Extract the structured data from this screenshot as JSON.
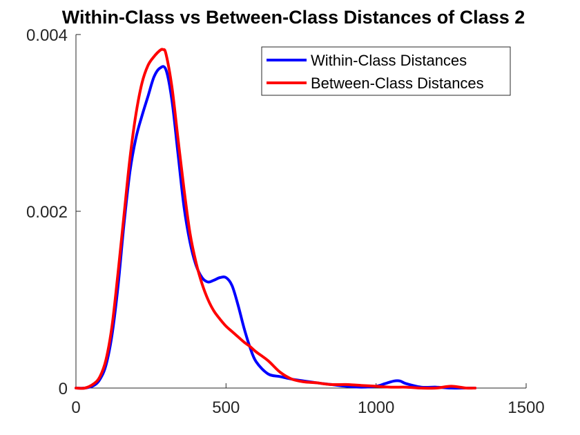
{
  "chart_data": {
    "type": "line",
    "title": "Within-Class vs Between-Class Distances of Class 2",
    "xlabel": "",
    "ylabel": "",
    "xlim": [
      0,
      1500
    ],
    "ylim": [
      0,
      0.004
    ],
    "x_ticks": [
      0,
      500,
      1000,
      1500
    ],
    "x_tick_labels": [
      "0",
      "500",
      "1000",
      "1500"
    ],
    "y_ticks": [
      0,
      0.002,
      0.004
    ],
    "y_tick_labels": [
      "0",
      "0.002",
      "0.004"
    ],
    "grid": false,
    "legend_position": "top-right",
    "series": [
      {
        "name": "Within-Class Distances",
        "color": "#0000ff",
        "x": [
          0,
          30,
          60,
          80,
          100,
          120,
          140,
          160,
          180,
          200,
          220,
          240,
          260,
          280,
          300,
          320,
          340,
          360,
          380,
          400,
          420,
          440,
          460,
          480,
          500,
          520,
          540,
          560,
          580,
          600,
          640,
          680,
          720,
          760,
          800,
          850,
          900,
          950,
          1000,
          1030,
          1060,
          1080,
          1100,
          1150,
          1200,
          1250,
          1300,
          1330
        ],
        "y": [
          0,
          0,
          3e-05,
          0.0001,
          0.00026,
          0.0006,
          0.00115,
          0.00185,
          0.00245,
          0.00283,
          0.00308,
          0.0033,
          0.00352,
          0.00362,
          0.0036,
          0.00325,
          0.00265,
          0.00205,
          0.00165,
          0.00139,
          0.00125,
          0.0012,
          0.00122,
          0.00125,
          0.00125,
          0.00116,
          0.00094,
          0.00068,
          0.00046,
          0.0003,
          0.00016,
          0.00013,
          0.0001,
          8e-05,
          6e-05,
          4e-05,
          2e-05,
          1e-05,
          2e-05,
          5e-05,
          8e-05,
          8e-05,
          5e-05,
          1e-05,
          1e-05,
          0,
          0,
          0
        ]
      },
      {
        "name": "Between-Class Distances",
        "color": "#ff0000",
        "x": [
          0,
          30,
          60,
          80,
          100,
          120,
          140,
          160,
          180,
          200,
          220,
          240,
          260,
          280,
          290,
          300,
          320,
          340,
          360,
          380,
          400,
          420,
          440,
          460,
          480,
          500,
          520,
          540,
          560,
          580,
          600,
          640,
          680,
          720,
          760,
          800,
          850,
          900,
          950,
          1000,
          1050,
          1100,
          1150,
          1200,
          1250,
          1300,
          1330
        ],
        "y": [
          0,
          0,
          5e-05,
          0.00013,
          0.00032,
          0.0007,
          0.0013,
          0.00195,
          0.0026,
          0.0031,
          0.00345,
          0.00365,
          0.00375,
          0.00382,
          0.00383,
          0.00378,
          0.0034,
          0.00282,
          0.00225,
          0.00175,
          0.00142,
          0.00118,
          0.001,
          0.00087,
          0.00078,
          0.0007,
          0.00064,
          0.00058,
          0.00052,
          0.00047,
          0.00041,
          0.00031,
          0.00018,
          0.0001,
          7e-05,
          6e-05,
          4e-05,
          4e-05,
          3e-05,
          2e-05,
          1e-05,
          1e-05,
          0,
          0,
          2e-05,
          0,
          0
        ]
      }
    ]
  }
}
